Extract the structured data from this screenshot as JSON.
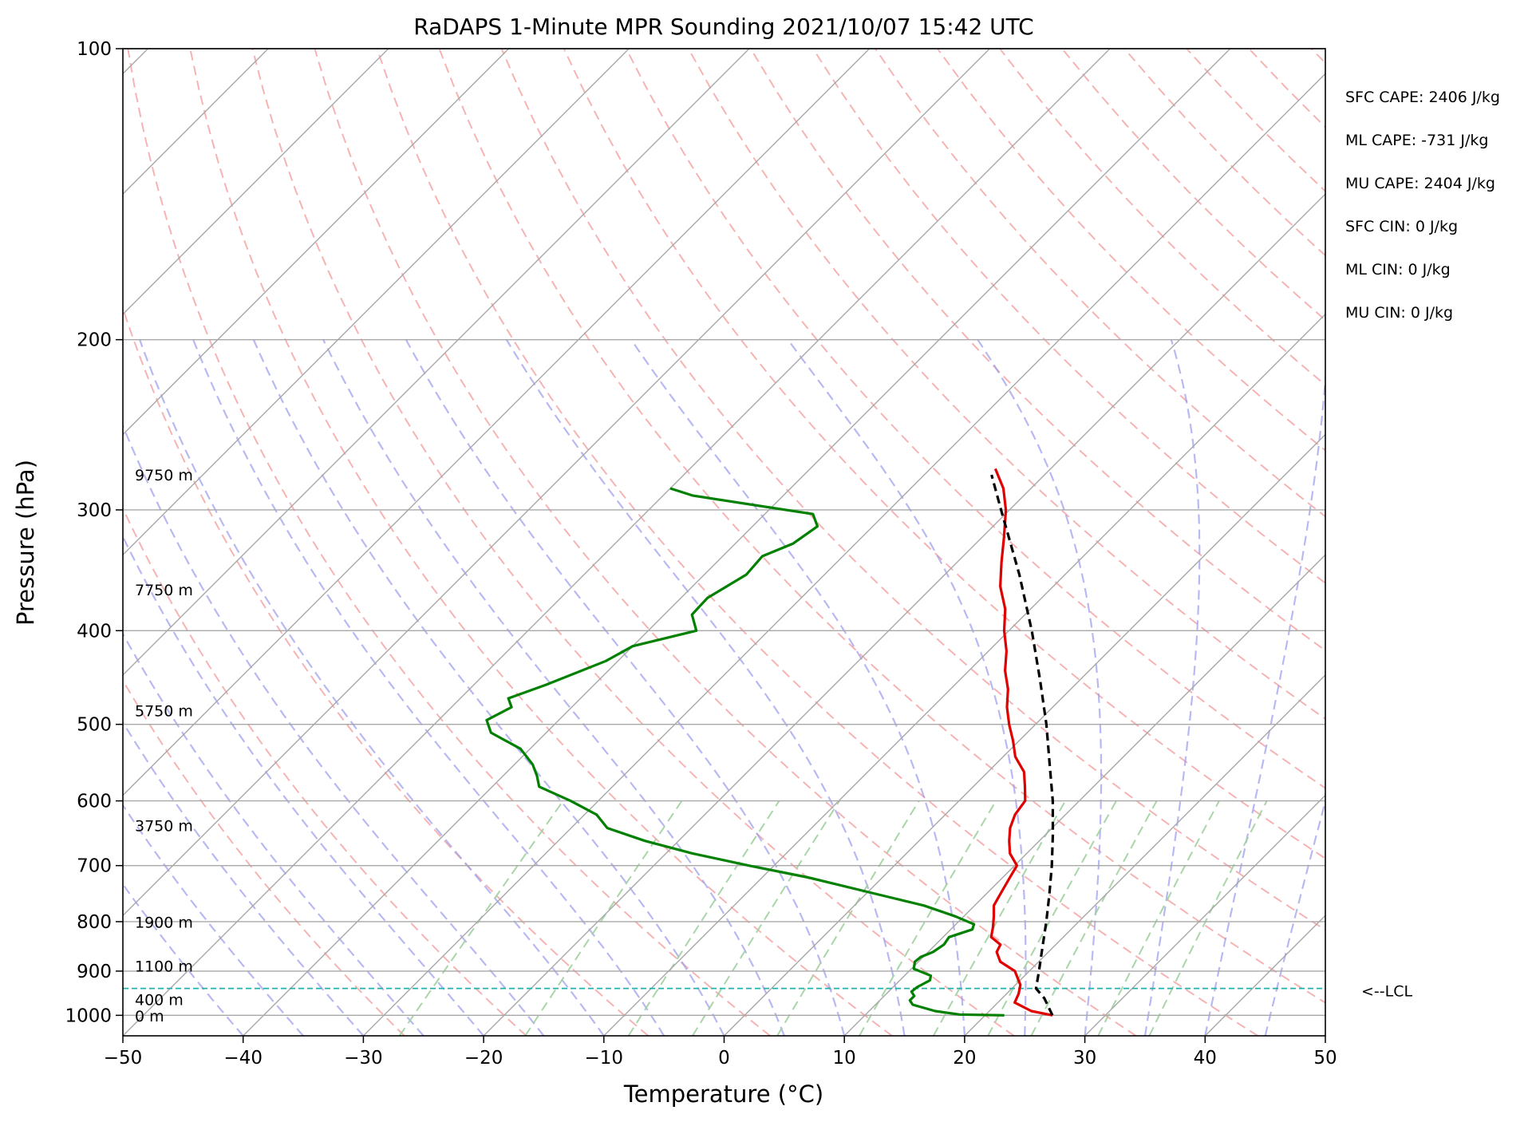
{
  "chart_data": {
    "type": "skew-t",
    "title": "RaDAPS 1-Minute MPR Sounding 2021/10/07 15:42 UTC",
    "xlabel": "Temperature (°C)",
    "ylabel": "Pressure (hPa)",
    "xlim": [
      -50,
      50
    ],
    "ylim": [
      1050,
      100
    ],
    "y_scale": "log",
    "x_ticks": [
      -50,
      -40,
      -30,
      -20,
      -10,
      0,
      10,
      20,
      30,
      40,
      50
    ],
    "y_ticks": [
      100,
      200,
      300,
      400,
      500,
      600,
      700,
      800,
      900,
      1000
    ],
    "colors": {
      "temperature": "#e00000",
      "dewpoint": "#008000",
      "parcel": "#000000",
      "dry_adiabats": "#f4a0a0",
      "moist_adiabats": "#9a9aee",
      "mixing_ratio": "#a0d0a0",
      "isotherms": "#a8a8a8",
      "lcl": "#20b2aa"
    },
    "stats": [
      {
        "label": "SFC CAPE: 2406 J/kg"
      },
      {
        "label": "ML CAPE: -731 J/kg"
      },
      {
        "label": "MU CAPE: 2404 J/kg"
      },
      {
        "label": "SFC CIN: 0 J/kg"
      },
      {
        "label": "ML CIN: 0 J/kg"
      },
      {
        "label": "MU CIN: 0 J/kg"
      }
    ],
    "lcl": {
      "pressure": 938,
      "label": "<--LCL"
    },
    "height_labels": [
      {
        "text": "9750 m",
        "pressure": 276
      },
      {
        "text": "7750 m",
        "pressure": 363
      },
      {
        "text": "5750 m",
        "pressure": 484
      },
      {
        "text": "3750 m",
        "pressure": 636
      },
      {
        "text": "1900 m",
        "pressure": 801
      },
      {
        "text": "1100 m",
        "pressure": 889
      },
      {
        "text": "400 m",
        "pressure": 963
      },
      {
        "text": "0 m",
        "pressure": 1001
      }
    ],
    "temperature": [
      {
        "p": 1000,
        "t": 25.6
      },
      {
        "p": 990,
        "t": 23.5
      },
      {
        "p": 970,
        "t": 21.4
      },
      {
        "p": 950,
        "t": 21.0
      },
      {
        "p": 930,
        "t": 20.4
      },
      {
        "p": 900,
        "t": 18.8
      },
      {
        "p": 880,
        "t": 16.8
      },
      {
        "p": 860,
        "t": 15.7
      },
      {
        "p": 845,
        "t": 15.4
      },
      {
        "p": 830,
        "t": 14.0
      },
      {
        "p": 810,
        "t": 13.3
      },
      {
        "p": 790,
        "t": 12.5
      },
      {
        "p": 770,
        "t": 11.6
      },
      {
        "p": 750,
        "t": 11.2
      },
      {
        "p": 720,
        "t": 10.6
      },
      {
        "p": 700,
        "t": 10.2
      },
      {
        "p": 680,
        "t": 8.6
      },
      {
        "p": 660,
        "t": 7.5
      },
      {
        "p": 640,
        "t": 6.5
      },
      {
        "p": 620,
        "t": 5.8
      },
      {
        "p": 600,
        "t": 5.5
      },
      {
        "p": 580,
        "t": 4.3
      },
      {
        "p": 560,
        "t": 3.0
      },
      {
        "p": 540,
        "t": 1.0
      },
      {
        "p": 520,
        "t": -0.5
      },
      {
        "p": 500,
        "t": -2.2
      },
      {
        "p": 480,
        "t": -3.8
      },
      {
        "p": 460,
        "t": -5.2
      },
      {
        "p": 440,
        "t": -7.0
      },
      {
        "p": 420,
        "t": -8.5
      },
      {
        "p": 400,
        "t": -10.4
      },
      {
        "p": 380,
        "t": -12.1
      },
      {
        "p": 360,
        "t": -14.4
      },
      {
        "p": 340,
        "t": -16.3
      },
      {
        "p": 320,
        "t": -18.2
      },
      {
        "p": 300,
        "t": -20.3
      },
      {
        "p": 285,
        "t": -22.3
      },
      {
        "p": 272,
        "t": -24.6
      }
    ],
    "dewpoint": [
      {
        "p": 1000,
        "t": 21.6
      },
      {
        "p": 998,
        "t": 17.8
      },
      {
        "p": 990,
        "t": 15.5
      },
      {
        "p": 975,
        "t": 13.1
      },
      {
        "p": 965,
        "t": 12.5
      },
      {
        "p": 955,
        "t": 12.5
      },
      {
        "p": 945,
        "t": 11.9
      },
      {
        "p": 935,
        "t": 12.0
      },
      {
        "p": 920,
        "t": 12.5
      },
      {
        "p": 910,
        "t": 12.2
      },
      {
        "p": 895,
        "t": 10.2
      },
      {
        "p": 880,
        "t": 9.7
      },
      {
        "p": 870,
        "t": 9.8
      },
      {
        "p": 860,
        "t": 10.4
      },
      {
        "p": 845,
        "t": 10.7
      },
      {
        "p": 830,
        "t": 10.5
      },
      {
        "p": 815,
        "t": 11.8
      },
      {
        "p": 805,
        "t": 11.5
      },
      {
        "p": 790,
        "t": 9.3
      },
      {
        "p": 770,
        "t": 5.8
      },
      {
        "p": 750,
        "t": 1.1
      },
      {
        "p": 720,
        "t": -6.2
      },
      {
        "p": 700,
        "t": -12.1
      },
      {
        "p": 680,
        "t": -17.8
      },
      {
        "p": 660,
        "t": -22.8
      },
      {
        "p": 640,
        "t": -27.0
      },
      {
        "p": 620,
        "t": -29.0
      },
      {
        "p": 600,
        "t": -32.3
      },
      {
        "p": 580,
        "t": -36.1
      },
      {
        "p": 565,
        "t": -37.2
      },
      {
        "p": 550,
        "t": -38.5
      },
      {
        "p": 530,
        "t": -40.8
      },
      {
        "p": 510,
        "t": -44.6
      },
      {
        "p": 495,
        "t": -46.0
      },
      {
        "p": 480,
        "t": -45.0
      },
      {
        "p": 470,
        "t": -46.0
      },
      {
        "p": 455,
        "t": -44.0
      },
      {
        "p": 430,
        "t": -41.0
      },
      {
        "p": 415,
        "t": -40.0
      },
      {
        "p": 400,
        "t": -36.0
      },
      {
        "p": 385,
        "t": -37.7
      },
      {
        "p": 370,
        "t": -37.8
      },
      {
        "p": 350,
        "t": -36.5
      },
      {
        "p": 335,
        "t": -36.7
      },
      {
        "p": 325,
        "t": -35.2
      },
      {
        "p": 312,
        "t": -34.6
      },
      {
        "p": 303,
        "t": -36.0
      },
      {
        "p": 290,
        "t": -47.5
      },
      {
        "p": 285,
        "t": -50.0
      }
    ],
    "parcel": [
      {
        "p": 1000,
        "t": 25.6
      },
      {
        "p": 960,
        "t": 23.5
      },
      {
        "p": 938,
        "t": 22.0
      },
      {
        "p": 900,
        "t": 20.8
      },
      {
        "p": 850,
        "t": 19.1
      },
      {
        "p": 800,
        "t": 17.3
      },
      {
        "p": 750,
        "t": 15.3
      },
      {
        "p": 700,
        "t": 13.1
      },
      {
        "p": 650,
        "t": 10.6
      },
      {
        "p": 600,
        "t": 7.8
      },
      {
        "p": 550,
        "t": 4.5
      },
      {
        "p": 500,
        "t": 0.9
      },
      {
        "p": 450,
        "t": -3.3
      },
      {
        "p": 400,
        "t": -8.1
      },
      {
        "p": 350,
        "t": -13.8
      },
      {
        "p": 300,
        "t": -20.7
      },
      {
        "p": 276,
        "t": -24.4
      }
    ]
  }
}
